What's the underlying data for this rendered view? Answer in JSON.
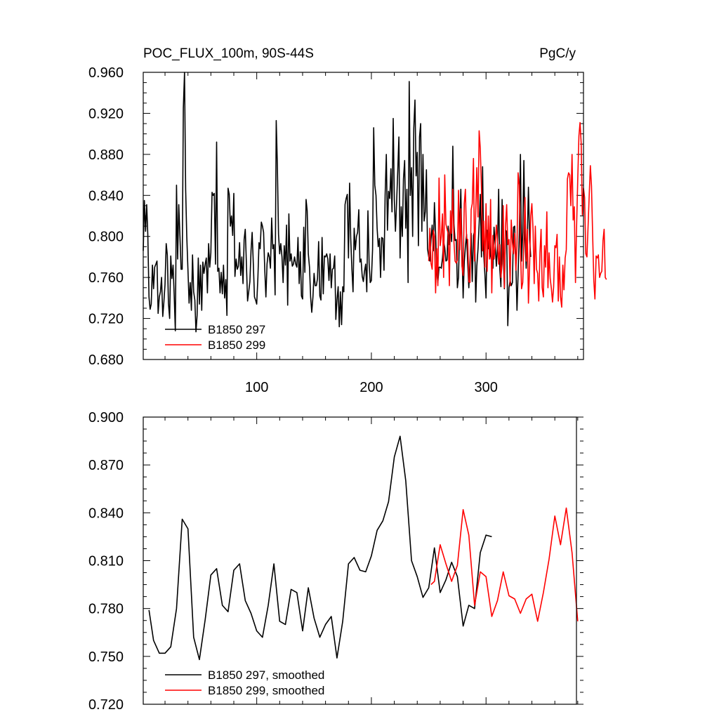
{
  "chart_data": [
    {
      "type": "line",
      "title_left": "POC_FLUX_100m, 90S-44S",
      "title_right": "PgC/y",
      "xlim": [
        1,
        385
      ],
      "ylim": [
        0.68,
        0.96
      ],
      "yticks": [
        "0.680",
        "0.720",
        "0.760",
        "0.800",
        "0.840",
        "0.880",
        "0.920",
        "0.960"
      ],
      "xticks": [
        "100",
        "200",
        "300"
      ],
      "legend": [
        "B1850 297",
        "B1850 299"
      ],
      "series": [
        {
          "name": "B1850 297",
          "color": "#000000",
          "x_start": 1,
          "values": [
            0.786,
            0.835,
            0.805,
            0.831,
            0.802,
            0.741,
            0.729,
            0.734,
            0.772,
            0.749,
            0.77,
            0.773,
            0.776,
            0.725,
            0.741,
            0.746,
            0.76,
            0.722,
            0.736,
            0.753,
            0.793,
            0.782,
            0.735,
            0.72,
            0.781,
            0.759,
            0.772,
            0.742,
            0.708,
            0.85,
            0.778,
            0.831,
            0.8,
            0.768,
            0.768,
            0.925,
            0.96,
            0.846,
            0.8,
            0.767,
            0.735,
            0.755,
            0.728,
            0.782,
            0.746,
            0.738,
            0.707,
            0.723,
            0.779,
            0.734,
            0.772,
            0.728,
            0.775,
            0.764,
            0.773,
            0.779,
            0.745,
            0.793,
            0.77,
            0.784,
            0.843,
            0.84,
            0.842,
            0.773,
            0.892,
            0.766,
            0.769,
            0.745,
            0.765,
            0.744,
            0.772,
            0.74,
            0.758,
            0.723,
            0.847,
            0.841,
            0.81,
            0.82,
            0.801,
            0.842,
            0.761,
            0.778,
            0.768,
            0.771,
            0.794,
            0.762,
            0.78,
            0.754,
            0.797,
            0.807,
            0.772,
            0.737,
            0.746,
            0.756,
            0.786,
            0.804,
            0.773,
            0.741,
            0.738,
            0.734,
            0.76,
            0.794,
            0.788,
            0.814,
            0.81,
            0.804,
            0.767,
            0.741,
            0.773,
            0.784,
            0.78,
            0.769,
            0.818,
            0.788,
            0.792,
            0.743,
            0.913,
            0.87,
            0.802,
            0.783,
            0.793,
            0.78,
            0.755,
            0.791,
            0.772,
            0.811,
            0.733,
            0.822,
            0.776,
            0.783,
            0.771,
            0.773,
            0.78,
            0.773,
            0.77,
            0.799,
            0.754,
            0.785,
            0.742,
            0.739,
            0.809,
            0.765,
            0.836,
            0.825,
            0.783,
            0.77,
            0.741,
            0.726,
            0.741,
            0.764,
            0.752,
            0.752,
            0.759,
            0.795,
            0.742,
            0.738,
            0.799,
            0.744,
            0.781,
            0.78,
            0.783,
            0.778,
            0.757,
            0.783,
            0.75,
            0.768,
            0.769,
            0.781,
            0.719,
            0.738,
            0.751,
            0.712,
            0.746,
            0.714,
            0.751,
            0.746,
            0.831,
            0.837,
            0.841,
            0.779,
            0.852,
            0.798,
            0.768,
            0.746,
            0.808,
            0.787,
            0.8,
            0.804,
            0.826,
            0.775,
            0.778,
            0.761,
            0.756,
            0.766,
            0.773,
            0.746,
            0.825,
            0.774,
            0.755,
            0.757,
            0.787,
            0.906,
            0.85,
            0.84,
            0.808,
            0.79,
            0.798,
            0.76,
            0.799,
            0.798,
            0.767,
            0.84,
            0.88,
            0.806,
            0.844,
            0.837,
            0.866,
            0.824,
            0.915,
            0.836,
            0.805,
            0.834,
            0.864,
            0.897,
            0.779,
            0.829,
            0.8,
            0.856,
            0.874,
            0.808,
            0.846,
            0.755,
            0.951,
            0.84,
            0.867,
            0.8,
            0.905,
            0.933,
            0.859,
            0.882,
            0.791,
            0.897,
            0.91,
            0.805,
            0.88,
            0.815,
            0.824,
            0.865,
            0.788,
            0.78,
            0.776,
            0.797,
            0.811,
            0.786,
            0.833,
            0.803,
            0.765,
            0.755,
            0.77,
            0.77,
            0.769,
            0.779,
            0.795,
            0.789,
            0.776,
            0.777,
            0.81,
            0.792,
            0.812,
            0.795,
            0.888,
            0.812,
            0.796,
            0.797,
            0.75,
            0.76,
            0.81,
            0.846,
            0.787,
            0.74,
            0.775,
            0.79,
            0.802,
            0.774,
            0.75,
            0.776,
            0.803,
            0.756,
            0.801,
            0.805,
            0.736,
            0.771,
            0.788,
            0.812,
            0.841,
            0.78,
            0.868,
            0.783,
            0.763,
            0.74,
            0.806,
            0.788,
            0.8,
            0.781,
            0.775,
            0.769,
            0.809,
            0.792,
            0.771,
            0.788,
            0.846,
            0.768,
            0.751,
            0.836,
            0.785,
            0.749,
            0.806,
            0.805,
            0.713,
            0.75,
            0.757,
            0.752,
            0.755,
            0.809,
            0.81,
            0.773,
            0.728,
            0.764,
            0.803,
            0.88,
            0.776,
            0.804,
            0.874,
            0.799,
            0.769,
            0.799,
            0.848,
            0.797,
            0.78
          ]
        },
        {
          "name": "B1850 299",
          "color": "#ff0000",
          "x_start": 250,
          "values": [
            0.776,
            0.808,
            0.774,
            0.768,
            0.806,
            0.8,
            0.745,
            0.788,
            0.752,
            0.857,
            0.791,
            0.8,
            0.822,
            0.76,
            0.86,
            0.812,
            0.807,
            0.803,
            0.752,
            0.825,
            0.803,
            0.846,
            0.795,
            0.776,
            0.774,
            0.777,
            0.845,
            0.787,
            0.827,
            0.771,
            0.762,
            0.832,
            0.846,
            0.798,
            0.797,
            0.756,
            0.755,
            0.826,
            0.832,
            0.876,
            0.776,
            0.822,
            0.867,
            0.819,
            0.903,
            0.886,
            0.847,
            0.786,
            0.815,
            0.77,
            0.832,
            0.766,
            0.82,
            0.778,
            0.836,
            0.745,
            0.801,
            0.778,
            0.791,
            0.811,
            0.797,
            0.773,
            0.792,
            0.76,
            0.773,
            0.83,
            0.75,
            0.81,
            0.831,
            0.792,
            0.797,
            0.752,
            0.816,
            0.794,
            0.783,
            0.803,
            0.767,
            0.791,
            0.862,
            0.85,
            0.79,
            0.749,
            0.755,
            0.795,
            0.838,
            0.776,
            0.807,
            0.735,
            0.772,
            0.82,
            0.832,
            0.806,
            0.754,
            0.81,
            0.768,
            0.764,
            0.737,
            0.784,
            0.807,
            0.75,
            0.741,
            0.791,
            0.77,
            0.824,
            0.75,
            0.784,
            0.759,
            0.749,
            0.736,
            0.751,
            0.791,
            0.789,
            0.802,
            0.737,
            0.78,
            0.741,
            0.731,
            0.772,
            0.748,
            0.779,
            0.787,
            0.856,
            0.862,
            0.86,
            0.83,
            0.88,
            0.816,
            0.829,
            0.755,
            0.81,
            0.855,
            0.898,
            0.911,
            0.891,
            0.821,
            0.847,
            0.838,
            0.783,
            0.78,
            0.809,
            0.841,
            0.869,
            0.849,
            0.8,
            0.757,
            0.739,
            0.781,
            0.779,
            0.782,
            0.76,
            0.764,
            0.766,
            0.796,
            0.807,
            0.76,
            0.758
          ]
        }
      ]
    },
    {
      "type": "line",
      "xlim": [
        1,
        385
      ],
      "ylim": [
        0.72,
        0.9
      ],
      "yticks": [
        "0.720",
        "0.750",
        "0.780",
        "0.810",
        "0.840",
        "0.870",
        "0.900"
      ],
      "legend": [
        "B1850 297, smoothed",
        "B1850 299, smoothed"
      ],
      "series": [
        {
          "name": "B1850 297, smoothed",
          "color": "#000000",
          "x_points": [
            6,
            10,
            15,
            20,
            25,
            30,
            35,
            40,
            45,
            50,
            55,
            60,
            65,
            70,
            75,
            80,
            85,
            90,
            95,
            100,
            105,
            110,
            115,
            120,
            125,
            130,
            135,
            140,
            145,
            150,
            155,
            160,
            165,
            170,
            175,
            180,
            185,
            190,
            195,
            200,
            205,
            210,
            215,
            220,
            225,
            230,
            235,
            240,
            245,
            250,
            255,
            260,
            265,
            270,
            275,
            280,
            285,
            290,
            295,
            300,
            305
          ],
          "values": [
            0.779,
            0.76,
            0.752,
            0.752,
            0.756,
            0.78,
            0.836,
            0.83,
            0.762,
            0.748,
            0.773,
            0.801,
            0.805,
            0.782,
            0.778,
            0.804,
            0.808,
            0.785,
            0.777,
            0.766,
            0.762,
            0.782,
            0.808,
            0.772,
            0.77,
            0.792,
            0.79,
            0.766,
            0.793,
            0.774,
            0.762,
            0.77,
            0.775,
            0.749,
            0.772,
            0.808,
            0.812,
            0.804,
            0.803,
            0.813,
            0.829,
            0.835,
            0.847,
            0.875,
            0.888,
            0.86,
            0.81,
            0.8,
            0.787,
            0.793,
            0.818,
            0.79,
            0.798,
            0.809,
            0.8,
            0.769,
            0.782,
            0.78,
            0.815,
            0.826,
            0.825
          ]
        },
        {
          "name": "B1850 299, smoothed",
          "color": "#ff0000",
          "x_points": [
            252,
            255,
            260,
            265,
            270,
            275,
            280,
            285,
            290,
            295,
            300,
            305,
            310,
            315,
            320,
            325,
            330,
            335,
            340,
            345,
            350,
            355,
            360,
            365,
            370,
            375,
            380
          ],
          "values": [
            0.795,
            0.797,
            0.82,
            0.808,
            0.797,
            0.807,
            0.842,
            0.826,
            0.782,
            0.803,
            0.8,
            0.775,
            0.785,
            0.803,
            0.788,
            0.786,
            0.777,
            0.786,
            0.789,
            0.772,
            0.79,
            0.811,
            0.838,
            0.82,
            0.843,
            0.815,
            0.772
          ]
        }
      ]
    }
  ]
}
